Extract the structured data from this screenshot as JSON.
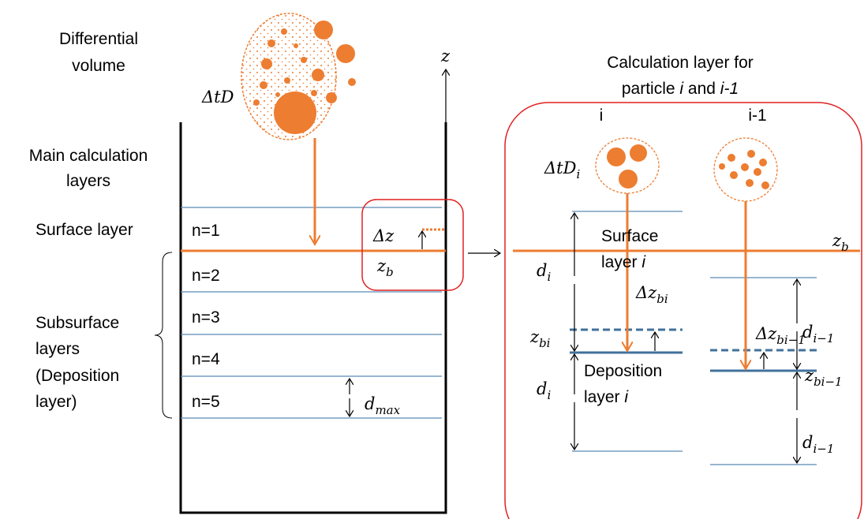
{
  "left": {
    "volume_label": [
      "Differential",
      "volume"
    ],
    "volume_symbol": "ΔtD",
    "z_axis": "z",
    "main_layers": [
      "Main calculation",
      "layers"
    ],
    "surface_layer": "Surface layer",
    "subsurface": [
      "Subsurface",
      "layers",
      "(Deposition",
      "layer)"
    ],
    "layers": [
      "n=1",
      "n=2",
      "n=3",
      "n=4",
      "n=5"
    ],
    "delta_z": "Δz",
    "z_b": {
      "base": "z",
      "sub": "b"
    },
    "d_max": {
      "base": "d",
      "sub": "max"
    }
  },
  "right": {
    "title": [
      "Calculation layer for",
      [
        "particle ",
        "i",
        " and ",
        "i-1"
      ]
    ],
    "columns": [
      "i",
      "i-1"
    ],
    "volume_symbol": {
      "base": "ΔtD",
      "sub": "i"
    },
    "z_b": {
      "base": "z",
      "sub": "b"
    },
    "surface_layer": [
      "Surface",
      "layer ",
      "i"
    ],
    "deposition_layer": [
      "Deposition",
      "layer ",
      "i"
    ],
    "d_i": {
      "base": "d",
      "sub": "i"
    },
    "delta_z_bi": {
      "base": "Δz",
      "sub": "bi"
    },
    "z_bi": {
      "base": "z",
      "sub": "bi"
    },
    "delta_z_bi_1": {
      "base": "Δz",
      "sub": "bi−1"
    },
    "d_i_1": {
      "base": "d",
      "sub": "i−1"
    },
    "z_bi_1": {
      "base": "z",
      "sub": "bi−1"
    }
  }
}
